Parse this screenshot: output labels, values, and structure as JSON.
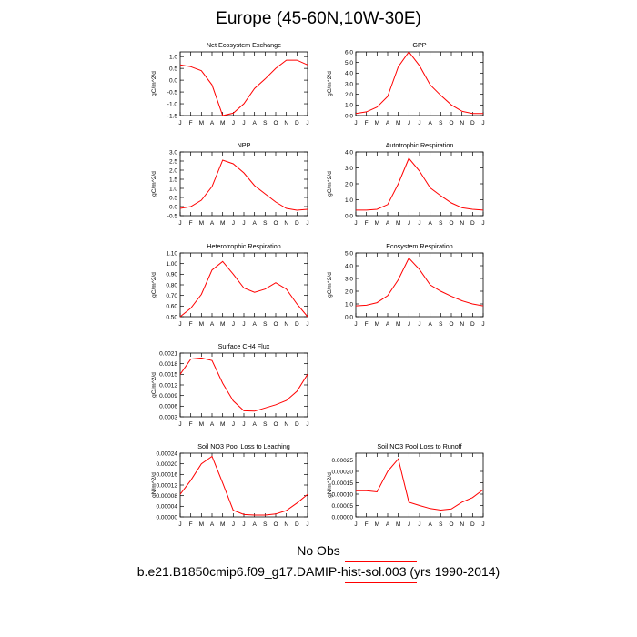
{
  "title": "Europe (45-60N,10W-30E)",
  "legend": {
    "obs_label": "No Obs",
    "case_label": "b.e21.B1850cmip6.f09_g17.DAMIP-hist-sol.003 (yrs 1990-2014)",
    "line_color": "#ff0000"
  },
  "chart_data": [
    {
      "type": "line",
      "title": "Net Ecosystem Exchange",
      "ylabel": "gC/m^2/d",
      "x": [
        "J",
        "F",
        "M",
        "A",
        "M",
        "J",
        "J",
        "A",
        "S",
        "O",
        "N",
        "D",
        "J"
      ],
      "ylim": [
        -1.5,
        1.2
      ],
      "yticks": [
        -1.5,
        -1.0,
        -0.5,
        0.0,
        0.5,
        1.0
      ],
      "ytick_labels": [
        "-1.5",
        "-1.0",
        "-0.5",
        "0.0",
        "0.5",
        "1.0"
      ],
      "series": [
        {
          "color": "#ff0000",
          "values": [
            0.65,
            0.57,
            0.4,
            -0.2,
            -1.5,
            -1.4,
            -1.0,
            -0.35,
            0.05,
            0.5,
            0.85,
            0.85,
            0.65
          ]
        }
      ]
    },
    {
      "type": "line",
      "title": "GPP",
      "ylabel": "gC/m^2/d",
      "x": [
        "J",
        "F",
        "M",
        "A",
        "M",
        "J",
        "J",
        "A",
        "S",
        "O",
        "N",
        "D",
        "J"
      ],
      "ylim": [
        0.0,
        6.0
      ],
      "yticks": [
        0,
        1,
        2,
        3,
        4,
        5,
        6
      ],
      "ytick_labels": [
        "0.0",
        "1.0",
        "2.0",
        "3.0",
        "4.0",
        "5.0",
        "6.0"
      ],
      "series": [
        {
          "color": "#ff0000",
          "values": [
            0.2,
            0.35,
            0.8,
            1.8,
            4.6,
            6.0,
            4.7,
            2.9,
            1.9,
            1.0,
            0.4,
            0.2,
            0.2
          ]
        }
      ]
    },
    {
      "type": "line",
      "title": "NPP",
      "ylabel": "gC/m^2/d",
      "x": [
        "J",
        "F",
        "M",
        "A",
        "M",
        "J",
        "J",
        "A",
        "S",
        "O",
        "N",
        "D",
        "J"
      ],
      "ylim": [
        -0.5,
        3.0
      ],
      "yticks": [
        -0.5,
        0,
        0.5,
        1,
        1.5,
        2,
        2.5,
        3
      ],
      "ytick_labels": [
        "-0.5",
        "0.0",
        "0.5",
        "1.0",
        "1.5",
        "2.0",
        "2.5",
        "3.0"
      ],
      "series": [
        {
          "color": "#ff0000",
          "values": [
            -0.1,
            0.0,
            0.35,
            1.1,
            2.55,
            2.35,
            1.85,
            1.15,
            0.7,
            0.25,
            -0.1,
            -0.2,
            -0.15
          ]
        }
      ]
    },
    {
      "type": "line",
      "title": "Autotrophic Respiration",
      "ylabel": "gC/m^2/d",
      "x": [
        "J",
        "F",
        "M",
        "A",
        "M",
        "J",
        "J",
        "A",
        "S",
        "O",
        "N",
        "D",
        "J"
      ],
      "ylim": [
        0.0,
        4.0
      ],
      "yticks": [
        0,
        1,
        2,
        3,
        4
      ],
      "ytick_labels": [
        "0.0",
        "1.0",
        "2.0",
        "3.0",
        "4.0"
      ],
      "series": [
        {
          "color": "#ff0000",
          "values": [
            0.35,
            0.35,
            0.4,
            0.7,
            2.0,
            3.6,
            2.8,
            1.75,
            1.25,
            0.8,
            0.5,
            0.4,
            0.35
          ]
        }
      ]
    },
    {
      "type": "line",
      "title": "Heterotrophic Respiration",
      "ylabel": "gC/m^2/d",
      "x": [
        "J",
        "F",
        "M",
        "A",
        "M",
        "J",
        "J",
        "A",
        "S",
        "O",
        "N",
        "D",
        "J"
      ],
      "ylim": [
        0.5,
        1.1
      ],
      "yticks": [
        0.5,
        0.6,
        0.7,
        0.8,
        0.9,
        1.0,
        1.1
      ],
      "ytick_labels": [
        "0.50",
        "0.60",
        "0.70",
        "0.80",
        "0.90",
        "1.00",
        "1.10"
      ],
      "series": [
        {
          "color": "#ff0000",
          "values": [
            0.5,
            0.58,
            0.71,
            0.94,
            1.02,
            0.9,
            0.77,
            0.73,
            0.76,
            0.82,
            0.76,
            0.62,
            0.5
          ]
        }
      ]
    },
    {
      "type": "line",
      "title": "Ecosystem Respiration",
      "ylabel": "gC/m^2/d",
      "x": [
        "J",
        "F",
        "M",
        "A",
        "M",
        "J",
        "J",
        "A",
        "S",
        "O",
        "N",
        "D",
        "J"
      ],
      "ylim": [
        0.0,
        5.0
      ],
      "yticks": [
        0,
        1,
        2,
        3,
        4,
        5
      ],
      "ytick_labels": [
        "0.0",
        "1.0",
        "2.0",
        "3.0",
        "4.0",
        "5.0"
      ],
      "series": [
        {
          "color": "#ff0000",
          "values": [
            0.85,
            0.9,
            1.1,
            1.65,
            2.9,
            4.6,
            3.7,
            2.5,
            2.0,
            1.6,
            1.25,
            1.0,
            0.85
          ]
        }
      ]
    },
    {
      "type": "line",
      "title": "Surface CH4 Flux",
      "ylabel": "gC/m^2/d",
      "x": [
        "J",
        "F",
        "M",
        "A",
        "M",
        "J",
        "J",
        "A",
        "S",
        "O",
        "N",
        "D",
        "J"
      ],
      "ylim": [
        0.0003,
        0.0021
      ],
      "yticks": [
        0.0003,
        0.0006,
        0.0009,
        0.0012,
        0.0015,
        0.0018,
        0.0021
      ],
      "ytick_labels": [
        "0.0003",
        "0.0006",
        "0.0009",
        "0.0012",
        "0.0015",
        "0.0018",
        "0.0021"
      ],
      "series": [
        {
          "color": "#ff0000",
          "values": [
            0.0015,
            0.00193,
            0.00196,
            0.00189,
            0.00125,
            0.00075,
            0.00047,
            0.00046,
            0.00055,
            0.00064,
            0.00076,
            0.00102,
            0.0015
          ]
        }
      ]
    },
    {
      "type": "line",
      "title": "Soil NO3 Pool Loss to Leaching",
      "ylabel": "gN/m^2/d",
      "x": [
        "J",
        "F",
        "M",
        "A",
        "M",
        "J",
        "J",
        "A",
        "S",
        "O",
        "N",
        "D",
        "J"
      ],
      "ylim": [
        0.0,
        0.00024
      ],
      "yticks": [
        0,
        4e-05,
        8e-05,
        0.00012,
        0.00016,
        0.0002,
        0.00024
      ],
      "ytick_labels": [
        "0.00000",
        "0.00004",
        "0.00008",
        "0.00012",
        "0.00016",
        "0.00020",
        "0.00024"
      ],
      "series": [
        {
          "color": "#ff0000",
          "values": [
            8.5e-05,
            0.000138,
            0.0002,
            0.000228,
            0.000128,
            2.5e-05,
            9e-06,
            7e-06,
            7e-06,
            1.1e-05,
            2.4e-05,
            5.2e-05,
            8.5e-05
          ]
        }
      ]
    },
    {
      "type": "line",
      "title": "Soil NO3 Pool Loss to Runoff",
      "ylabel": "gN/m^2/d",
      "x": [
        "J",
        "F",
        "M",
        "A",
        "M",
        "J",
        "J",
        "A",
        "S",
        "O",
        "N",
        "D",
        "J"
      ],
      "ylim": [
        0.0,
        0.00028
      ],
      "yticks": [
        0,
        5e-05,
        0.0001,
        0.00015,
        0.0002,
        0.00025
      ],
      "ytick_labels": [
        "0.00000",
        "0.00005",
        "0.00010",
        "0.00015",
        "0.00020",
        "0.00025"
      ],
      "series": [
        {
          "color": "#ff0000",
          "values": [
            0.000115,
            0.000115,
            0.00011,
            0.0002,
            0.000255,
            6.5e-05,
            5e-05,
            3.7e-05,
            3e-05,
            3.5e-05,
            6.5e-05,
            8.5e-05,
            0.00012
          ]
        }
      ]
    }
  ]
}
